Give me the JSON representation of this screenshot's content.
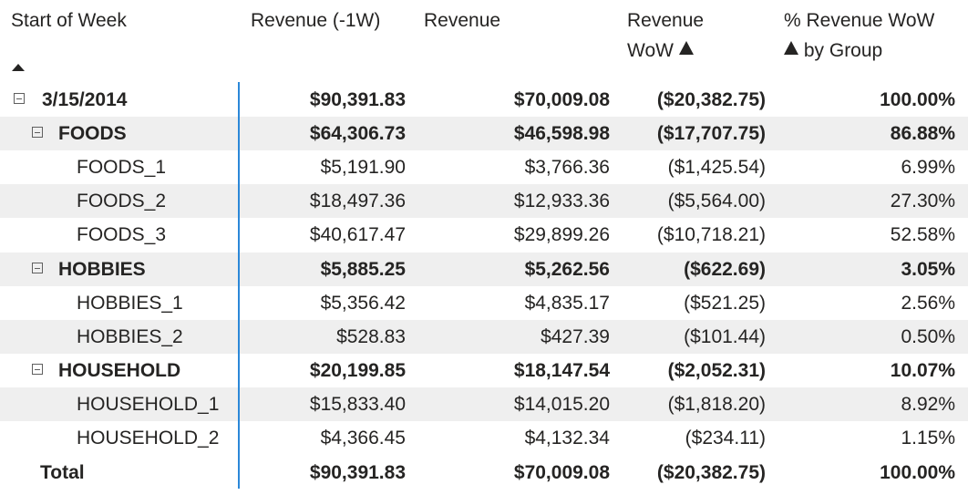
{
  "headers": {
    "start_of_week": "Start of Week",
    "revenue_prev": "Revenue (-1W)",
    "revenue": "Revenue",
    "revenue_wow_line1": "Revenue",
    "revenue_wow_line2": "WoW",
    "pct_line1": "% Revenue WoW",
    "pct_line2": "by Group"
  },
  "rows": [
    {
      "label": "3/15/2014",
      "prev": "$90,391.83",
      "rev": "$70,009.08",
      "wow": "($20,382.75)",
      "pct": "100.00%"
    },
    {
      "label": "FOODS",
      "prev": "$64,306.73",
      "rev": "$46,598.98",
      "wow": "($17,707.75)",
      "pct": "86.88%"
    },
    {
      "label": "FOODS_1",
      "prev": "$5,191.90",
      "rev": "$3,766.36",
      "wow": "($1,425.54)",
      "pct": "6.99%"
    },
    {
      "label": "FOODS_2",
      "prev": "$18,497.36",
      "rev": "$12,933.36",
      "wow": "($5,564.00)",
      "pct": "27.30%"
    },
    {
      "label": "FOODS_3",
      "prev": "$40,617.47",
      "rev": "$29,899.26",
      "wow": "($10,718.21)",
      "pct": "52.58%"
    },
    {
      "label": "HOBBIES",
      "prev": "$5,885.25",
      "rev": "$5,262.56",
      "wow": "($622.69)",
      "pct": "3.05%"
    },
    {
      "label": "HOBBIES_1",
      "prev": "$5,356.42",
      "rev": "$4,835.17",
      "wow": "($521.25)",
      "pct": "2.56%"
    },
    {
      "label": "HOBBIES_2",
      "prev": "$528.83",
      "rev": "$427.39",
      "wow": "($101.44)",
      "pct": "0.50%"
    },
    {
      "label": "HOUSEHOLD",
      "prev": "$20,199.85",
      "rev": "$18,147.54",
      "wow": "($2,052.31)",
      "pct": "10.07%"
    },
    {
      "label": "HOUSEHOLD_1",
      "prev": "$15,833.40",
      "rev": "$14,015.20",
      "wow": "($1,818.20)",
      "pct": "8.92%"
    },
    {
      "label": "HOUSEHOLD_2",
      "prev": "$4,366.45",
      "rev": "$4,132.34",
      "wow": "($234.11)",
      "pct": "1.15%"
    },
    {
      "label": "Total",
      "prev": "$90,391.83",
      "rev": "$70,009.08",
      "wow": "($20,382.75)",
      "pct": "100.00%"
    }
  ]
}
